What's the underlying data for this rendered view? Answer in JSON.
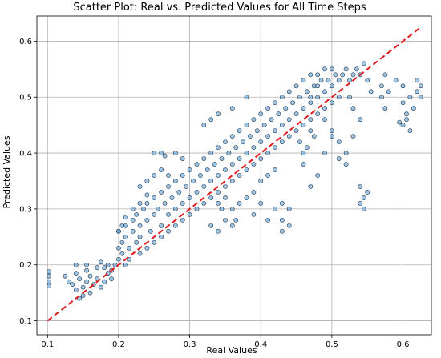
{
  "chart_data": {
    "type": "scatter",
    "title": "Scatter Plot: Real vs. Predicted Values for All Time Steps",
    "xlabel": "Real Values",
    "ylabel": "Predicted Values",
    "xlim": [
      0.085,
      0.64
    ],
    "ylim": [
      0.075,
      0.645
    ],
    "xticks": [
      0.1,
      0.2,
      0.3,
      0.4,
      0.5,
      0.6
    ],
    "yticks": [
      0.1,
      0.2,
      0.3,
      0.4,
      0.5,
      0.6
    ],
    "xtick_labels": [
      "0.1",
      "0.2",
      "0.3",
      "0.4",
      "0.5",
      "0.6"
    ],
    "ytick_labels": [
      "0.1",
      "0.2",
      "0.3",
      "0.4",
      "0.5",
      "0.6"
    ],
    "grid": true,
    "point_color": "#5f9ed1",
    "point_edge_color": "#1f3a55",
    "reference_line": {
      "style": "dashed",
      "color": "#e41a1c",
      "from": [
        0.1,
        0.1
      ],
      "to": [
        0.625,
        0.625
      ]
    },
    "series": [
      {
        "points": [
          [
            0.102,
            0.18
          ],
          [
            0.102,
            0.17
          ],
          [
            0.102,
            0.162
          ],
          [
            0.102,
            0.188
          ],
          [
            0.125,
            0.18
          ],
          [
            0.13,
            0.17
          ],
          [
            0.135,
            0.165
          ],
          [
            0.14,
            0.155
          ],
          [
            0.14,
            0.185
          ],
          [
            0.145,
            0.175
          ],
          [
            0.15,
            0.16
          ],
          [
            0.155,
            0.17
          ],
          [
            0.155,
            0.19
          ],
          [
            0.16,
            0.15
          ],
          [
            0.16,
            0.18
          ],
          [
            0.165,
            0.165
          ],
          [
            0.17,
            0.175
          ],
          [
            0.17,
            0.195
          ],
          [
            0.175,
            0.16
          ],
          [
            0.18,
            0.17
          ],
          [
            0.185,
            0.185
          ],
          [
            0.19,
            0.175
          ],
          [
            0.145,
            0.14
          ],
          [
            0.15,
            0.145
          ],
          [
            0.14,
            0.2
          ],
          [
            0.155,
            0.2
          ],
          [
            0.2,
            0.26
          ],
          [
            0.2,
            0.23
          ],
          [
            0.2,
            0.21
          ],
          [
            0.205,
            0.24
          ],
          [
            0.21,
            0.27
          ],
          [
            0.21,
            0.25
          ],
          [
            0.215,
            0.23
          ],
          [
            0.22,
            0.26
          ],
          [
            0.22,
            0.28
          ],
          [
            0.225,
            0.29
          ],
          [
            0.23,
            0.27
          ],
          [
            0.23,
            0.25
          ],
          [
            0.235,
            0.3
          ],
          [
            0.24,
            0.28
          ],
          [
            0.24,
            0.31
          ],
          [
            0.245,
            0.26
          ],
          [
            0.25,
            0.29
          ],
          [
            0.25,
            0.32
          ],
          [
            0.255,
            0.3
          ],
          [
            0.26,
            0.27
          ],
          [
            0.26,
            0.33
          ],
          [
            0.265,
            0.31
          ],
          [
            0.27,
            0.29
          ],
          [
            0.27,
            0.34
          ],
          [
            0.275,
            0.32
          ],
          [
            0.28,
            0.3
          ],
          [
            0.28,
            0.35
          ],
          [
            0.285,
            0.33
          ],
          [
            0.29,
            0.31
          ],
          [
            0.29,
            0.36
          ],
          [
            0.295,
            0.34
          ],
          [
            0.3,
            0.32
          ],
          [
            0.3,
            0.37
          ],
          [
            0.305,
            0.35
          ],
          [
            0.31,
            0.33
          ],
          [
            0.31,
            0.38
          ],
          [
            0.315,
            0.36
          ],
          [
            0.32,
            0.34
          ],
          [
            0.32,
            0.39
          ],
          [
            0.325,
            0.37
          ],
          [
            0.33,
            0.35
          ],
          [
            0.33,
            0.4
          ],
          [
            0.335,
            0.38
          ],
          [
            0.34,
            0.36
          ],
          [
            0.34,
            0.41
          ],
          [
            0.345,
            0.39
          ],
          [
            0.35,
            0.37
          ],
          [
            0.35,
            0.42
          ],
          [
            0.355,
            0.4
          ],
          [
            0.36,
            0.38
          ],
          [
            0.36,
            0.43
          ],
          [
            0.365,
            0.41
          ],
          [
            0.37,
            0.39
          ],
          [
            0.37,
            0.44
          ],
          [
            0.375,
            0.42
          ],
          [
            0.38,
            0.4
          ],
          [
            0.38,
            0.45
          ],
          [
            0.385,
            0.43
          ],
          [
            0.39,
            0.41
          ],
          [
            0.39,
            0.46
          ],
          [
            0.395,
            0.44
          ],
          [
            0.4,
            0.42
          ],
          [
            0.4,
            0.47
          ],
          [
            0.405,
            0.45
          ],
          [
            0.41,
            0.43
          ],
          [
            0.41,
            0.48
          ],
          [
            0.415,
            0.46
          ],
          [
            0.42,
            0.44
          ],
          [
            0.42,
            0.49
          ],
          [
            0.425,
            0.47
          ],
          [
            0.43,
            0.45
          ],
          [
            0.43,
            0.5
          ],
          [
            0.435,
            0.48
          ],
          [
            0.44,
            0.46
          ],
          [
            0.44,
            0.51
          ],
          [
            0.445,
            0.49
          ],
          [
            0.45,
            0.47
          ],
          [
            0.45,
            0.52
          ],
          [
            0.455,
            0.5
          ],
          [
            0.46,
            0.48
          ],
          [
            0.46,
            0.53
          ],
          [
            0.465,
            0.51
          ],
          [
            0.47,
            0.49
          ],
          [
            0.47,
            0.54
          ],
          [
            0.475,
            0.52
          ],
          [
            0.48,
            0.5
          ],
          [
            0.48,
            0.54
          ],
          [
            0.485,
            0.53
          ],
          [
            0.49,
            0.51
          ],
          [
            0.49,
            0.55
          ],
          [
            0.495,
            0.53
          ],
          [
            0.5,
            0.52
          ],
          [
            0.5,
            0.55
          ],
          [
            0.505,
            0.54
          ],
          [
            0.51,
            0.53
          ],
          [
            0.515,
            0.54
          ],
          [
            0.52,
            0.55
          ],
          [
            0.525,
            0.53
          ],
          [
            0.53,
            0.54
          ],
          [
            0.535,
            0.55
          ],
          [
            0.54,
            0.54
          ],
          [
            0.545,
            0.56
          ],
          [
            0.55,
            0.53
          ],
          [
            0.555,
            0.51
          ],
          [
            0.205,
            0.22
          ],
          [
            0.21,
            0.2
          ],
          [
            0.215,
            0.21
          ],
          [
            0.225,
            0.24
          ],
          [
            0.23,
            0.22
          ],
          [
            0.24,
            0.23
          ],
          [
            0.25,
            0.24
          ],
          [
            0.26,
            0.25
          ],
          [
            0.27,
            0.26
          ],
          [
            0.28,
            0.27
          ],
          [
            0.29,
            0.28
          ],
          [
            0.3,
            0.29
          ],
          [
            0.31,
            0.3
          ],
          [
            0.32,
            0.31
          ],
          [
            0.33,
            0.32
          ],
          [
            0.34,
            0.33
          ],
          [
            0.35,
            0.34
          ],
          [
            0.36,
            0.35
          ],
          [
            0.37,
            0.36
          ],
          [
            0.38,
            0.37
          ],
          [
            0.39,
            0.38
          ],
          [
            0.4,
            0.39
          ],
          [
            0.41,
            0.4
          ],
          [
            0.42,
            0.41
          ],
          [
            0.43,
            0.42
          ],
          [
            0.44,
            0.43
          ],
          [
            0.45,
            0.44
          ],
          [
            0.46,
            0.45
          ],
          [
            0.47,
            0.46
          ],
          [
            0.48,
            0.47
          ],
          [
            0.49,
            0.48
          ],
          [
            0.5,
            0.49
          ],
          [
            0.51,
            0.5
          ],
          [
            0.25,
            0.4
          ],
          [
            0.26,
            0.4
          ],
          [
            0.265,
            0.395
          ],
          [
            0.28,
            0.4
          ],
          [
            0.29,
            0.39
          ],
          [
            0.26,
            0.37
          ],
          [
            0.27,
            0.36
          ],
          [
            0.24,
            0.35
          ],
          [
            0.25,
            0.36
          ],
          [
            0.23,
            0.34
          ],
          [
            0.32,
            0.45
          ],
          [
            0.33,
            0.46
          ],
          [
            0.34,
            0.47
          ],
          [
            0.36,
            0.48
          ],
          [
            0.38,
            0.5
          ],
          [
            0.33,
            0.27
          ],
          [
            0.34,
            0.26
          ],
          [
            0.35,
            0.28
          ],
          [
            0.36,
            0.3
          ],
          [
            0.37,
            0.31
          ],
          [
            0.38,
            0.32
          ],
          [
            0.39,
            0.33
          ],
          [
            0.4,
            0.35
          ],
          [
            0.41,
            0.36
          ],
          [
            0.42,
            0.37
          ],
          [
            0.43,
            0.31
          ],
          [
            0.43,
            0.28
          ],
          [
            0.43,
            0.26
          ],
          [
            0.44,
            0.3
          ],
          [
            0.44,
            0.27
          ],
          [
            0.47,
            0.34
          ],
          [
            0.48,
            0.36
          ],
          [
            0.46,
            0.38
          ],
          [
            0.49,
            0.4
          ],
          [
            0.5,
            0.43
          ],
          [
            0.47,
            0.5
          ],
          [
            0.48,
            0.52
          ],
          [
            0.49,
            0.46
          ],
          [
            0.5,
            0.44
          ],
          [
            0.51,
            0.42
          ],
          [
            0.51,
            0.39
          ],
          [
            0.52,
            0.4
          ],
          [
            0.52,
            0.38
          ],
          [
            0.53,
            0.43
          ],
          [
            0.54,
            0.34
          ],
          [
            0.545,
            0.32
          ],
          [
            0.545,
            0.3
          ],
          [
            0.54,
            0.31
          ],
          [
            0.55,
            0.33
          ],
          [
            0.57,
            0.52
          ],
          [
            0.57,
            0.5
          ],
          [
            0.575,
            0.48
          ],
          [
            0.575,
            0.54
          ],
          [
            0.58,
            0.51
          ],
          [
            0.59,
            0.53
          ],
          [
            0.6,
            0.52
          ],
          [
            0.6,
            0.49
          ],
          [
            0.605,
            0.47
          ],
          [
            0.605,
            0.46
          ],
          [
            0.61,
            0.5
          ],
          [
            0.615,
            0.48
          ],
          [
            0.62,
            0.51
          ],
          [
            0.625,
            0.52
          ],
          [
            0.625,
            0.5
          ],
          [
            0.62,
            0.53
          ],
          [
            0.6,
            0.45
          ],
          [
            0.595,
            0.455
          ],
          [
            0.61,
            0.44
          ],
          [
            0.525,
            0.5
          ],
          [
            0.53,
            0.48
          ],
          [
            0.54,
            0.46
          ],
          [
            0.455,
            0.42
          ],
          [
            0.46,
            0.4
          ],
          [
            0.465,
            0.41
          ],
          [
            0.47,
            0.44
          ],
          [
            0.475,
            0.43
          ],
          [
            0.34,
            0.31
          ],
          [
            0.345,
            0.3
          ],
          [
            0.35,
            0.32
          ],
          [
            0.36,
            0.27
          ],
          [
            0.365,
            0.28
          ],
          [
            0.39,
            0.29
          ],
          [
            0.4,
            0.31
          ],
          [
            0.41,
            0.28
          ],
          [
            0.42,
            0.3
          ],
          [
            0.2,
            0.26
          ],
          [
            0.205,
            0.27
          ],
          [
            0.21,
            0.285
          ],
          [
            0.22,
            0.3
          ],
          [
            0.23,
            0.31
          ],
          [
            0.24,
            0.325
          ],
          [
            0.195,
            0.2
          ],
          [
            0.19,
            0.19
          ],
          [
            0.185,
            0.2
          ],
          [
            0.18,
            0.195
          ],
          [
            0.175,
            0.205
          ]
        ]
      }
    ]
  }
}
